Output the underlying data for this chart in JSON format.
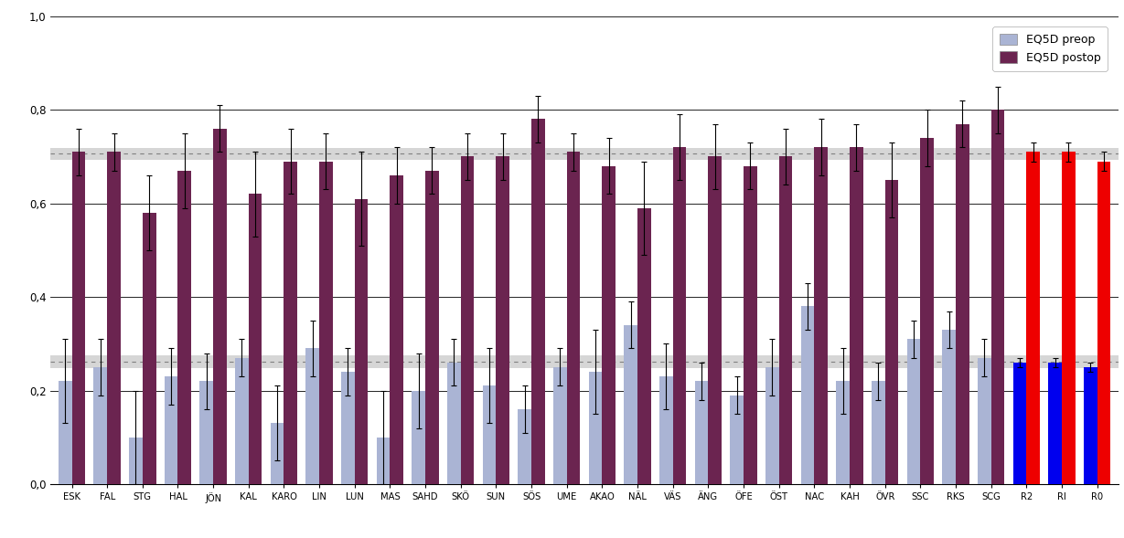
{
  "categories": [
    "ESK",
    "FAL",
    "STG",
    "HAL",
    "JÖN",
    "KAL",
    "KARO",
    "LIN",
    "LUN",
    "MAS",
    "SAHD",
    "SKÖ",
    "SUN",
    "SÖS",
    "UME",
    "AKAO",
    "NÄL",
    "VÄS",
    "ÄNG",
    "ÖFE",
    "ÖST",
    "NAC",
    "KAH",
    "ÖVR",
    "SSC",
    "RKS",
    "SCG",
    "R2",
    "RI",
    "R0"
  ],
  "preop": [
    0.22,
    0.25,
    0.1,
    0.23,
    0.22,
    0.27,
    0.13,
    0.29,
    0.24,
    0.1,
    0.2,
    0.26,
    0.21,
    0.16,
    0.25,
    0.24,
    0.34,
    0.23,
    0.22,
    0.19,
    0.25,
    0.38,
    0.22,
    0.22,
    0.31,
    0.33,
    0.27,
    0.26,
    0.26,
    0.25
  ],
  "postop": [
    0.71,
    0.71,
    0.58,
    0.67,
    0.76,
    0.62,
    0.69,
    0.69,
    0.61,
    0.66,
    0.67,
    0.7,
    0.7,
    0.78,
    0.71,
    0.68,
    0.59,
    0.72,
    0.7,
    0.68,
    0.7,
    0.72,
    0.72,
    0.65,
    0.74,
    0.77,
    0.8,
    0.71,
    0.71,
    0.69
  ],
  "preop_err": [
    0.09,
    0.06,
    0.1,
    0.06,
    0.06,
    0.04,
    0.08,
    0.06,
    0.05,
    0.1,
    0.08,
    0.05,
    0.08,
    0.05,
    0.04,
    0.09,
    0.05,
    0.07,
    0.04,
    0.04,
    0.06,
    0.05,
    0.07,
    0.04,
    0.04,
    0.04,
    0.04,
    0.01,
    0.01,
    0.01
  ],
  "postop_err": [
    0.05,
    0.04,
    0.08,
    0.08,
    0.05,
    0.09,
    0.07,
    0.06,
    0.1,
    0.06,
    0.05,
    0.05,
    0.05,
    0.05,
    0.04,
    0.06,
    0.1,
    0.07,
    0.07,
    0.05,
    0.06,
    0.06,
    0.05,
    0.08,
    0.06,
    0.05,
    0.05,
    0.02,
    0.02,
    0.02
  ],
  "preop_color_normal": "#aab4d4",
  "postop_color_normal": "#6b2450",
  "preop_color_reference": "#0000ee",
  "postop_color_reference": "#ee0000",
  "reference_groups": [
    "R2",
    "RI",
    "R0"
  ],
  "hline_preop": 0.262,
  "hline_postop": 0.706,
  "ylim": [
    0.0,
    1.0
  ],
  "yticks": [
    0.0,
    0.2,
    0.4,
    0.6,
    0.8,
    1.0
  ],
  "ytick_labels": [
    "0,0",
    "0,2",
    "0,4",
    "0,6",
    "0,8",
    "1,0"
  ],
  "legend_labels": [
    "EQ5D preop",
    "EQ5D postop"
  ],
  "bar_width": 0.38,
  "figwidth": 12.29,
  "figheight": 5.89,
  "dpi": 100
}
